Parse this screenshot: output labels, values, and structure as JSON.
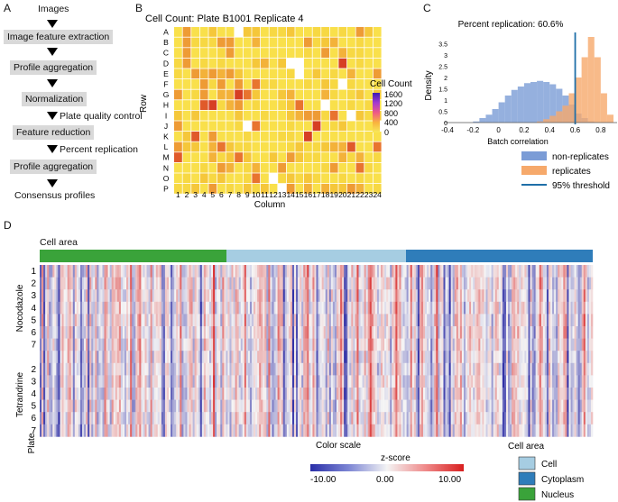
{
  "panels": {
    "a": "A",
    "b": "B",
    "c": "C",
    "d": "D"
  },
  "flowchart": {
    "steps": [
      "Images",
      "Image feature extraction",
      "Profile aggregation",
      "Normalization",
      "Feature reduction",
      "Profile aggregation",
      "Consensus profiles"
    ],
    "side_labels": [
      "Plate quality control",
      "Percent replication"
    ]
  },
  "colors": {
    "non_replicates": "#7b9cd6",
    "replicates": "#f6a96b",
    "threshold": "#1f6fa8",
    "cell": "#a6cde2",
    "cytoplasm": "#2f7dba",
    "nucleus": "#3aa33a"
  },
  "heatmap_b": {
    "title": "Cell Count: Plate B1001 Replicate 4",
    "ylabel": "Row",
    "xlabel": "Column",
    "rows": [
      "A",
      "B",
      "C",
      "D",
      "E",
      "F",
      "G",
      "H",
      "I",
      "J",
      "K",
      "L",
      "M",
      "N",
      "O",
      "P"
    ],
    "cols": [
      "1",
      "2",
      "3",
      "4",
      "5",
      "6",
      "7",
      "8",
      "9",
      "10",
      "11",
      "12",
      "13",
      "14",
      "15",
      "16",
      "17",
      "18",
      "19",
      "20",
      "21",
      "22",
      "23",
      "24"
    ],
    "colorbar_title": "Cell Count",
    "colorbar_ticks": [
      "1600",
      "1200",
      "800",
      "400",
      "0"
    ],
    "white_wells": [
      "A-8",
      "D-14",
      "D-15",
      "E-15",
      "F-20",
      "H-18",
      "I-21",
      "J-9",
      "J-24",
      "O-12",
      "P-13"
    ]
  },
  "histogram_c": {
    "title": "Percent replication: 60.6%",
    "xlabel": "Batch correlation",
    "ylabel": "Density",
    "xticks": [
      "-0.4",
      "-0.2",
      "0",
      "0.2",
      "0.4",
      "0.6",
      "0.8"
    ],
    "yticks": [
      "0",
      "0.5",
      "1",
      "1.5",
      "2",
      "2.5",
      "3",
      "3.5"
    ],
    "legend": [
      "non-replicates",
      "replicates",
      "95% threshold"
    ]
  },
  "chart_data": [
    {
      "type": "heatmap",
      "title": "Cell Count: Plate B1001 Replicate 4",
      "xlabel": "Column",
      "ylabel": "Row",
      "color_range": [
        0,
        1600
      ]
    },
    {
      "type": "bar",
      "title": "Percent replication: 60.6%",
      "xlabel": "Batch correlation",
      "ylabel": "Density",
      "xlim": [
        -0.4,
        0.9
      ],
      "ylim": [
        0,
        4
      ],
      "bin_edges": [
        -0.4,
        -0.35,
        -0.3,
        -0.25,
        -0.2,
        -0.15,
        -0.1,
        -0.05,
        0,
        0.05,
        0.1,
        0.15,
        0.2,
        0.25,
        0.3,
        0.35,
        0.4,
        0.45,
        0.5,
        0.55,
        0.6,
        0.65,
        0.7,
        0.75,
        0.8,
        0.85,
        0.9
      ],
      "series": [
        {
          "name": "non-replicates",
          "values": [
            0,
            0,
            0,
            0,
            0.05,
            0.2,
            0.35,
            0.6,
            0.9,
            1.2,
            1.45,
            1.6,
            1.75,
            1.8,
            1.85,
            1.8,
            1.7,
            1.5,
            1.2,
            0.8,
            0.4,
            0.2,
            0.05,
            0,
            0,
            0
          ]
        },
        {
          "name": "replicates",
          "values": [
            0,
            0,
            0,
            0,
            0,
            0,
            0,
            0,
            0,
            0,
            0,
            0,
            0,
            0,
            0.05,
            0.15,
            0.3,
            0.5,
            0.75,
            1.3,
            2.0,
            2.9,
            3.8,
            2.9,
            1.3,
            0.35
          ]
        }
      ],
      "threshold": 0.6
    }
  ],
  "heatmap_d": {
    "cell_area_label": "Cell area",
    "group1": "Nocodazole",
    "group2": "Tetrandrine",
    "plate_label": "Plate",
    "rows1": [
      "1",
      "2",
      "3",
      "4",
      "5",
      "6",
      "7"
    ],
    "rows2": [
      "1",
      "2",
      "3",
      "4",
      "5",
      "6",
      "7"
    ],
    "colorscale_title": "Color scale",
    "zscore_label": "z-score",
    "zscore_ticks": [
      "-10.00",
      "0.00",
      "10.00"
    ],
    "legend_title": "Cell area",
    "legend_items": [
      "Cell",
      "Cytoplasm",
      "Nucleus"
    ],
    "area_fractions": {
      "nucleus": 0.34,
      "cell": 0.33,
      "cytoplasm": 0.33
    }
  }
}
